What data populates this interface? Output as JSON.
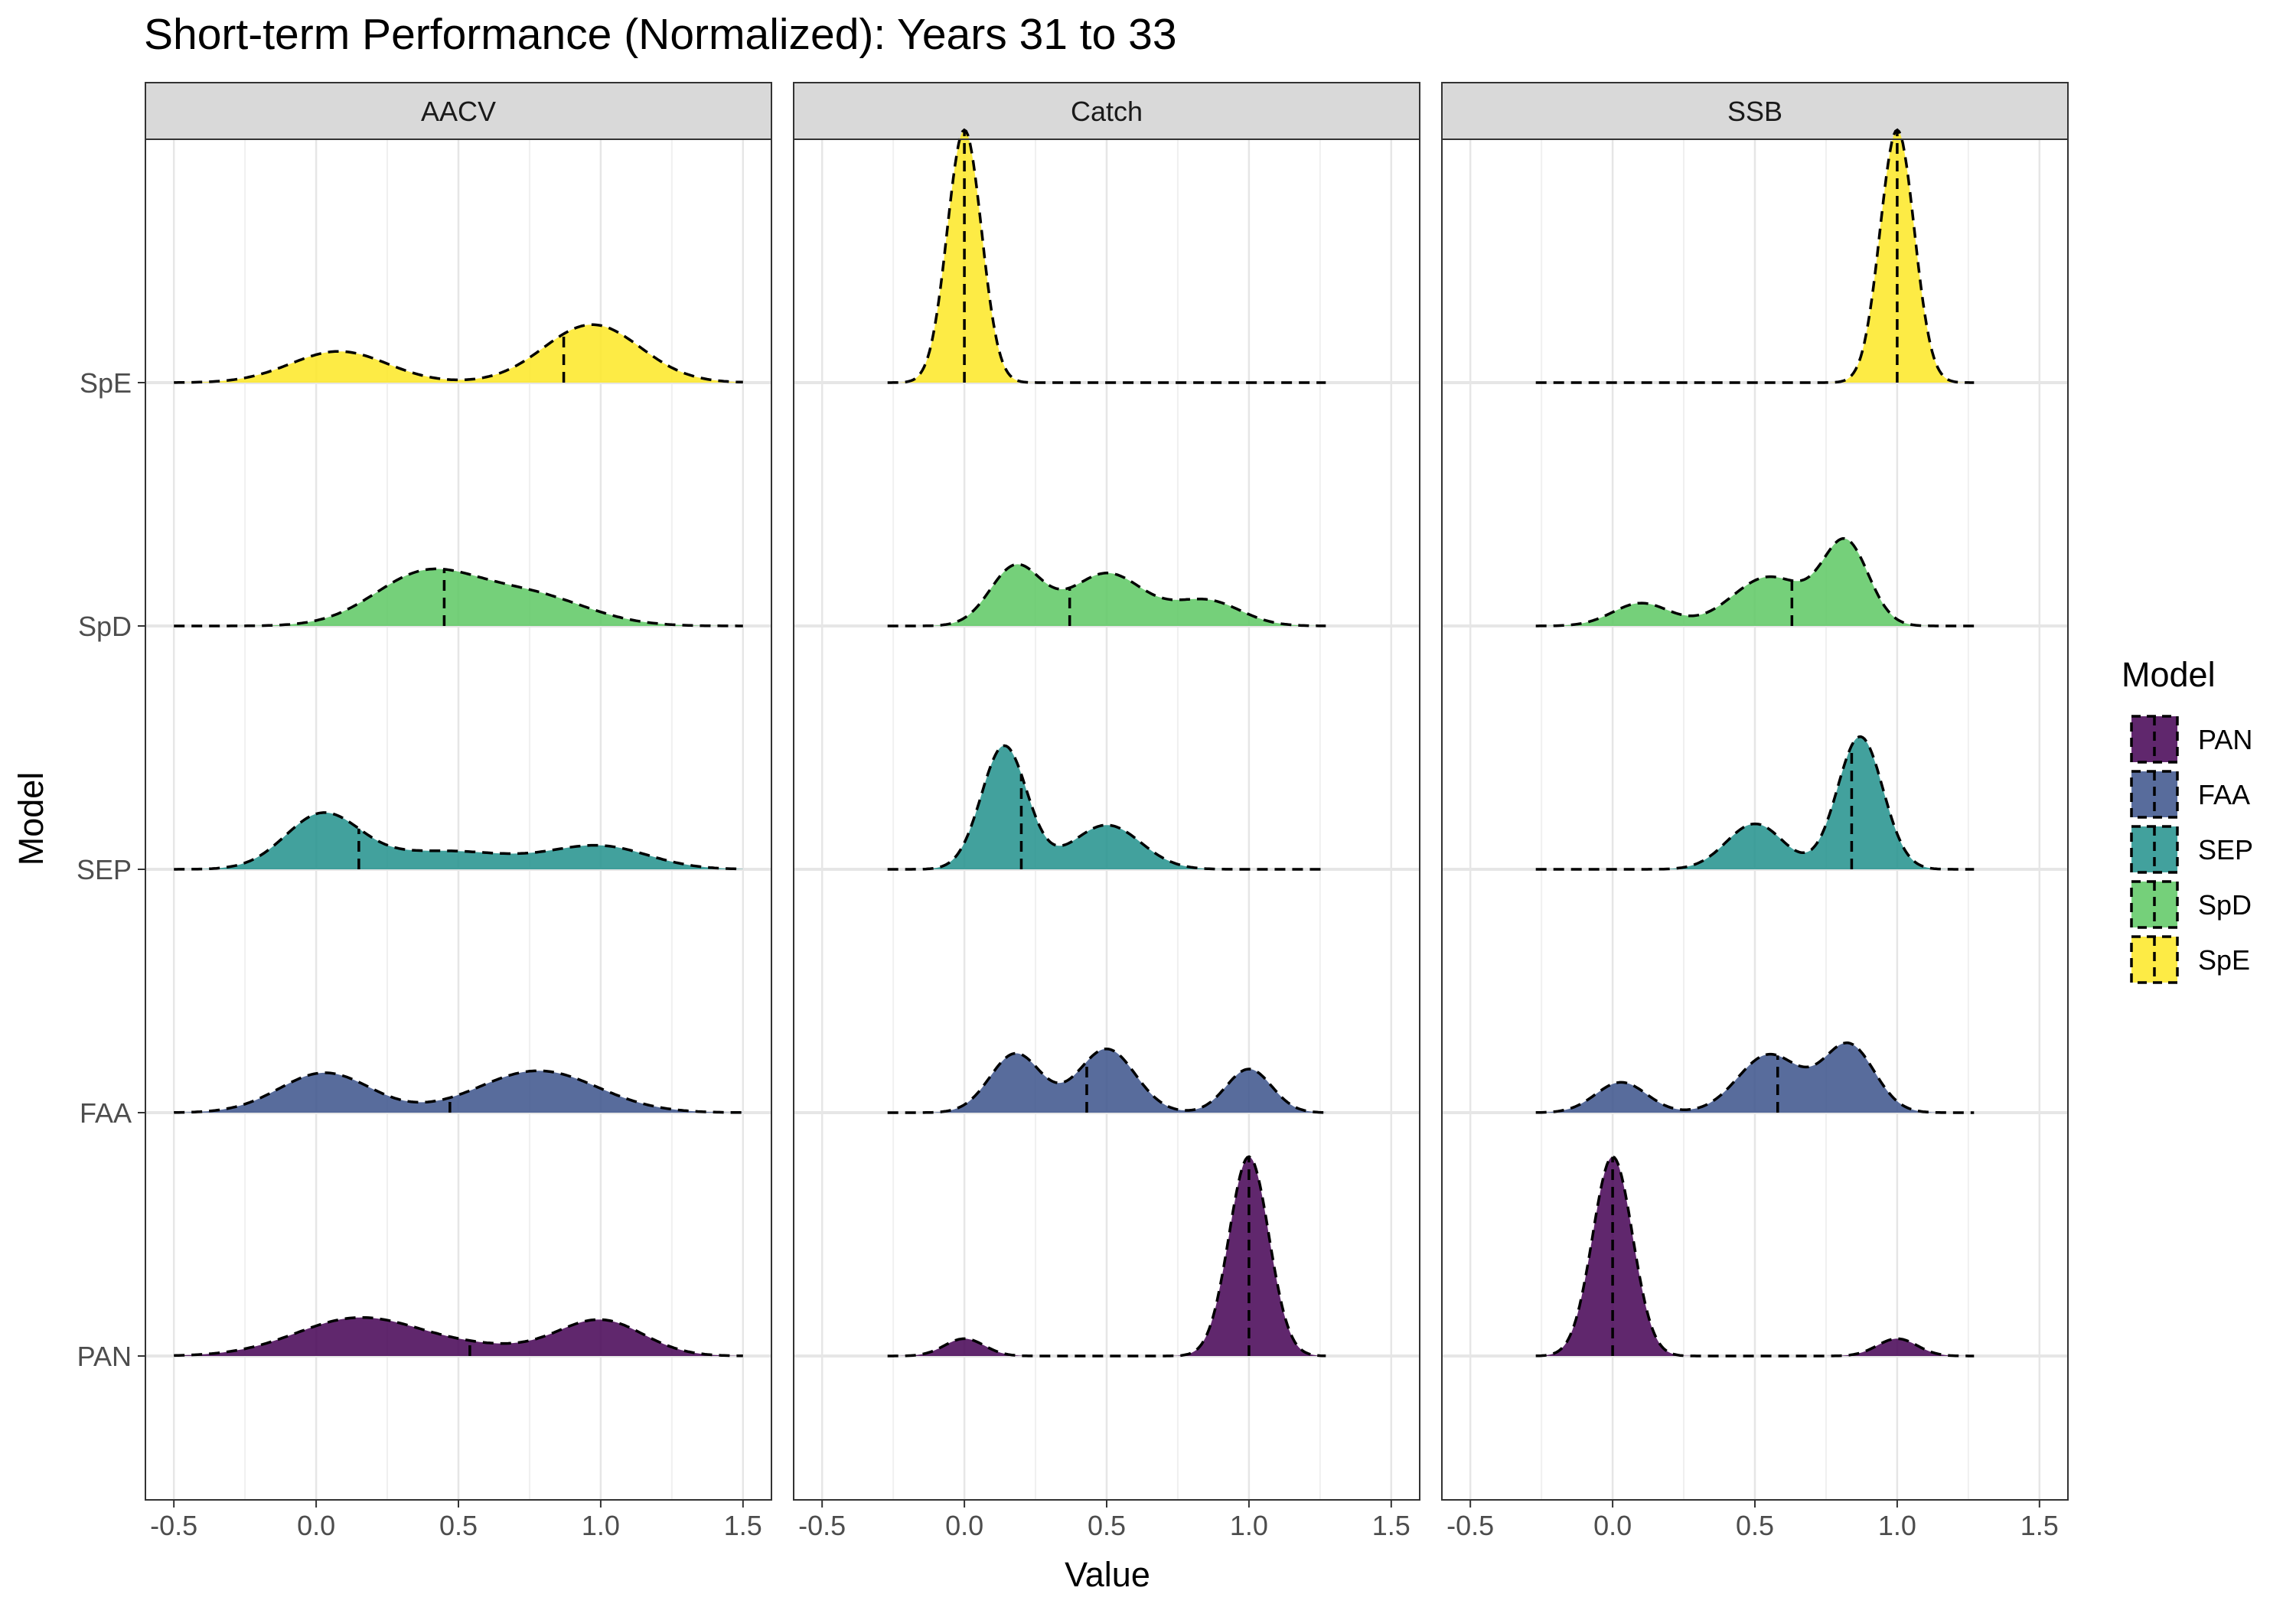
{
  "chart_data": {
    "type": "ridgeline-density",
    "title": "Short-term Performance (Normalized): Years 31 to 33",
    "xlabel": "Value",
    "ylabel": "Model",
    "xlim": [
      -0.6,
      1.6
    ],
    "x_ticks": [
      -0.5,
      0.0,
      0.5,
      1.0,
      1.5
    ],
    "x_tick_labels": [
      "-0.5",
      "0.0",
      "0.5",
      "1.0",
      "1.5"
    ],
    "grid": true,
    "theme": "black-and-white",
    "fill_opacity": 0.85,
    "outline_style": "dashed",
    "vertical_line": "median",
    "models": [
      "PAN",
      "FAA",
      "SEP",
      "SpD",
      "SpE"
    ],
    "legend": {
      "title": "Model",
      "placement": "right",
      "entries": [
        "PAN",
        "FAA",
        "SEP",
        "SpD",
        "SpE"
      ]
    },
    "colors": {
      "PAN": "#440154",
      "FAA": "#3B528B",
      "SEP": "#21908C",
      "SpD": "#5DC863",
      "SpE": "#FDE725"
    },
    "panels": [
      {
        "name": "AACV",
        "x_range": [
          -0.5,
          1.5
        ],
        "series": [
          {
            "model": "PAN",
            "median": 0.54,
            "components": [
              {
                "mu": 0.15,
                "sd": 0.22,
                "w": 0.55
              },
              {
                "mu": 1.0,
                "sd": 0.15,
                "w": 0.35
              },
              {
                "mu": 0.6,
                "sd": 0.2,
                "w": 0.1
              }
            ]
          },
          {
            "model": "FAA",
            "median": 0.47,
            "components": [
              {
                "mu": 0.03,
                "sd": 0.16,
                "w": 0.42
              },
              {
                "mu": 0.78,
                "sd": 0.21,
                "w": 0.58
              }
            ]
          },
          {
            "model": "SEP",
            "median": 0.15,
            "components": [
              {
                "mu": 0.02,
                "sd": 0.13,
                "w": 0.45
              },
              {
                "mu": 0.45,
                "sd": 0.25,
                "w": 0.3
              },
              {
                "mu": 1.0,
                "sd": 0.17,
                "w": 0.25
              }
            ]
          },
          {
            "model": "SpD",
            "median": 0.45,
            "components": [
              {
                "mu": 0.38,
                "sd": 0.18,
                "w": 0.6
              },
              {
                "mu": 0.75,
                "sd": 0.2,
                "w": 0.4
              }
            ]
          },
          {
            "model": "SpE",
            "median": 0.87,
            "components": [
              {
                "mu": 0.08,
                "sd": 0.17,
                "w": 0.35
              },
              {
                "mu": 0.97,
                "sd": 0.17,
                "w": 0.65
              }
            ]
          }
        ]
      },
      {
        "name": "Catch",
        "x_range": [
          -0.27,
          1.27
        ],
        "series": [
          {
            "model": "PAN",
            "median": 1.0,
            "components": [
              {
                "mu": 0.0,
                "sd": 0.07,
                "w": 0.08
              },
              {
                "mu": 1.0,
                "sd": 0.07,
                "w": 0.92
              }
            ]
          },
          {
            "model": "FAA",
            "median": 0.43,
            "components": [
              {
                "mu": 0.18,
                "sd": 0.09,
                "w": 0.35
              },
              {
                "mu": 0.5,
                "sd": 0.1,
                "w": 0.42
              },
              {
                "mu": 1.0,
                "sd": 0.08,
                "w": 0.23
              }
            ]
          },
          {
            "model": "SEP",
            "median": 0.2,
            "components": [
              {
                "mu": 0.14,
                "sd": 0.08,
                "w": 0.65
              },
              {
                "mu": 0.5,
                "sd": 0.12,
                "w": 0.35
              }
            ]
          },
          {
            "model": "SpD",
            "median": 0.37,
            "components": [
              {
                "mu": 0.18,
                "sd": 0.09,
                "w": 0.35
              },
              {
                "mu": 0.5,
                "sd": 0.13,
                "w": 0.45
              },
              {
                "mu": 0.85,
                "sd": 0.12,
                "w": 0.2
              }
            ]
          },
          {
            "model": "SpE",
            "median": 0.0,
            "components": [
              {
                "mu": 0.0,
                "sd": 0.06,
                "w": 1.0
              }
            ]
          }
        ]
      },
      {
        "name": "SSB",
        "x_range": [
          -0.27,
          1.27
        ],
        "series": [
          {
            "model": "PAN",
            "median": 0.0,
            "components": [
              {
                "mu": 0.0,
                "sd": 0.07,
                "w": 0.92
              },
              {
                "mu": 1.0,
                "sd": 0.07,
                "w": 0.08
              }
            ]
          },
          {
            "model": "FAA",
            "median": 0.58,
            "components": [
              {
                "mu": 0.03,
                "sd": 0.09,
                "w": 0.18
              },
              {
                "mu": 0.55,
                "sd": 0.11,
                "w": 0.42
              },
              {
                "mu": 0.83,
                "sd": 0.09,
                "w": 0.4
              }
            ]
          },
          {
            "model": "SEP",
            "median": 0.84,
            "components": [
              {
                "mu": 0.5,
                "sd": 0.1,
                "w": 0.3
              },
              {
                "mu": 0.87,
                "sd": 0.08,
                "w": 0.7
              }
            ]
          },
          {
            "model": "SpD",
            "median": 0.63,
            "components": [
              {
                "mu": 0.1,
                "sd": 0.1,
                "w": 0.15
              },
              {
                "mu": 0.55,
                "sd": 0.13,
                "w": 0.42
              },
              {
                "mu": 0.82,
                "sd": 0.08,
                "w": 0.43
              }
            ]
          },
          {
            "model": "SpE",
            "median": 1.0,
            "components": [
              {
                "mu": 1.0,
                "sd": 0.06,
                "w": 1.0
              }
            ]
          }
        ]
      }
    ]
  }
}
